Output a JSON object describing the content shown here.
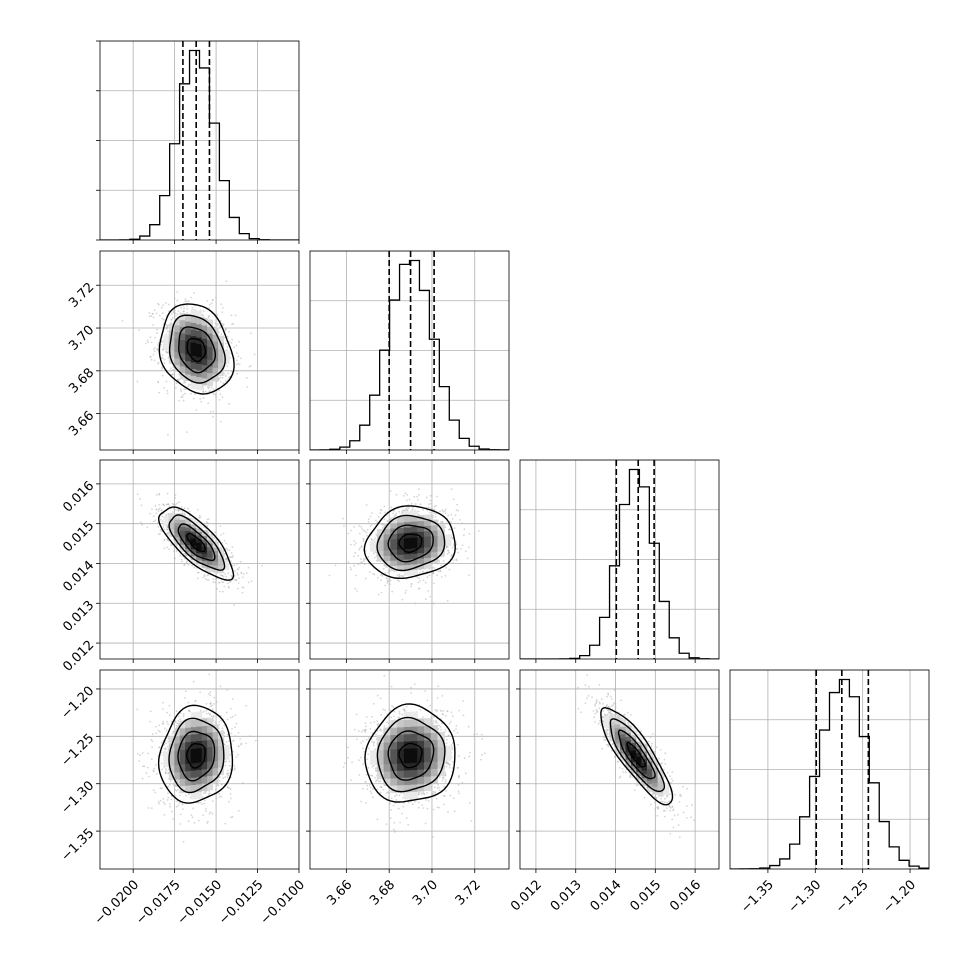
{
  "chart_data": {
    "type": "corner",
    "title": "",
    "grid": true,
    "parameters": [
      {
        "axis_range": [
          -0.022,
          -0.01
        ],
        "ticks": [
          -0.02,
          -0.0175,
          -0.015,
          -0.0125,
          -0.01
        ],
        "tick_labels": [
          "−0.0200",
          "−0.0175",
          "−0.0150",
          "−0.0125",
          "−0.0100"
        ],
        "quantiles": [
          -0.017,
          -0.0162,
          -0.0154
        ],
        "mean": -0.0162,
        "sigma": 0.0011
      },
      {
        "axis_range": [
          3.643,
          3.736
        ],
        "ticks": [
          3.66,
          3.68,
          3.7,
          3.72
        ],
        "tick_labels": [
          "3.66",
          "3.68",
          "3.70",
          "3.72"
        ],
        "quantiles": [
          3.68,
          3.69,
          3.701
        ],
        "mean": 3.69,
        "sigma": 0.0105
      },
      {
        "axis_range": [
          0.0116,
          0.0166
        ],
        "ticks": [
          0.012,
          0.013,
          0.014,
          0.015,
          0.016
        ],
        "tick_labels": [
          "0.012",
          "0.013",
          "0.014",
          "0.015",
          "0.016"
        ],
        "quantiles": [
          0.01402,
          0.01457,
          0.01497
        ],
        "mean": 0.01452,
        "sigma": 0.00045
      },
      {
        "axis_range": [
          -1.39,
          -1.18
        ],
        "ticks": [
          -1.35,
          -1.3,
          -1.25,
          -1.2
        ],
        "tick_labels": [
          "−1.35",
          "−1.30",
          "−1.25",
          "−1.20"
        ],
        "quantiles": [
          -1.299,
          -1.272,
          -1.244
        ],
        "mean": -1.27,
        "sigma": 0.0255
      }
    ],
    "correlations": {
      "1-0": -0.2,
      "2-0": -0.75,
      "2-1": 0.1,
      "3-0": 0.08,
      "3-1": 0.05,
      "3-2": -0.85
    },
    "colors": {
      "contour": "#000000",
      "points": "#b4b4b4",
      "grid": "#b0b0b0",
      "histogram": "#000000"
    }
  }
}
